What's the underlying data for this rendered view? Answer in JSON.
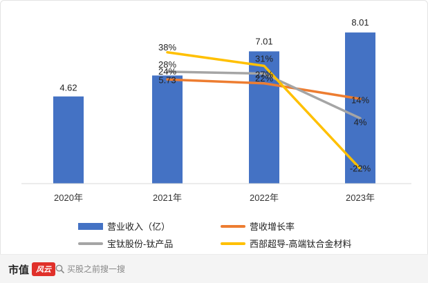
{
  "chart_data": {
    "type": "bar+line",
    "categories": [
      "2020年",
      "2021年",
      "2022年",
      "2023年"
    ],
    "bar_series": {
      "name": "营业收入（亿）",
      "color": "#4472C4",
      "values": [
        4.62,
        5.73,
        7.01,
        8.01
      ],
      "labels": [
        "4.62",
        "5.73",
        "7.01",
        "8.01"
      ]
    },
    "line_series": [
      {
        "name": "营收增长率",
        "color": "#ED7D31",
        "start_index": 1,
        "values": [
          24,
          22,
          14
        ],
        "labels": [
          "24%",
          "22%",
          "14%"
        ]
      },
      {
        "name": "宝钛股份-钛产品",
        "color": "#A5A5A5",
        "start_index": 1,
        "values": [
          28,
          27,
          4
        ],
        "labels": [
          "28%",
          "27%",
          "4%"
        ]
      },
      {
        "name": "西部超导-高端钛合金材料",
        "color": "#FFC000",
        "start_index": 1,
        "values": [
          38,
          31,
          -22
        ],
        "labels": [
          "38%",
          "31%",
          "-22%"
        ]
      }
    ],
    "y_left_range": [
      0,
      9.0
    ],
    "y_right_range": [
      -30,
      50
    ],
    "legend_position": "bottom",
    "grid": false
  },
  "footer": {
    "brand": "市值",
    "seal": "风云",
    "search_placeholder": "买股之前搜一搜"
  }
}
